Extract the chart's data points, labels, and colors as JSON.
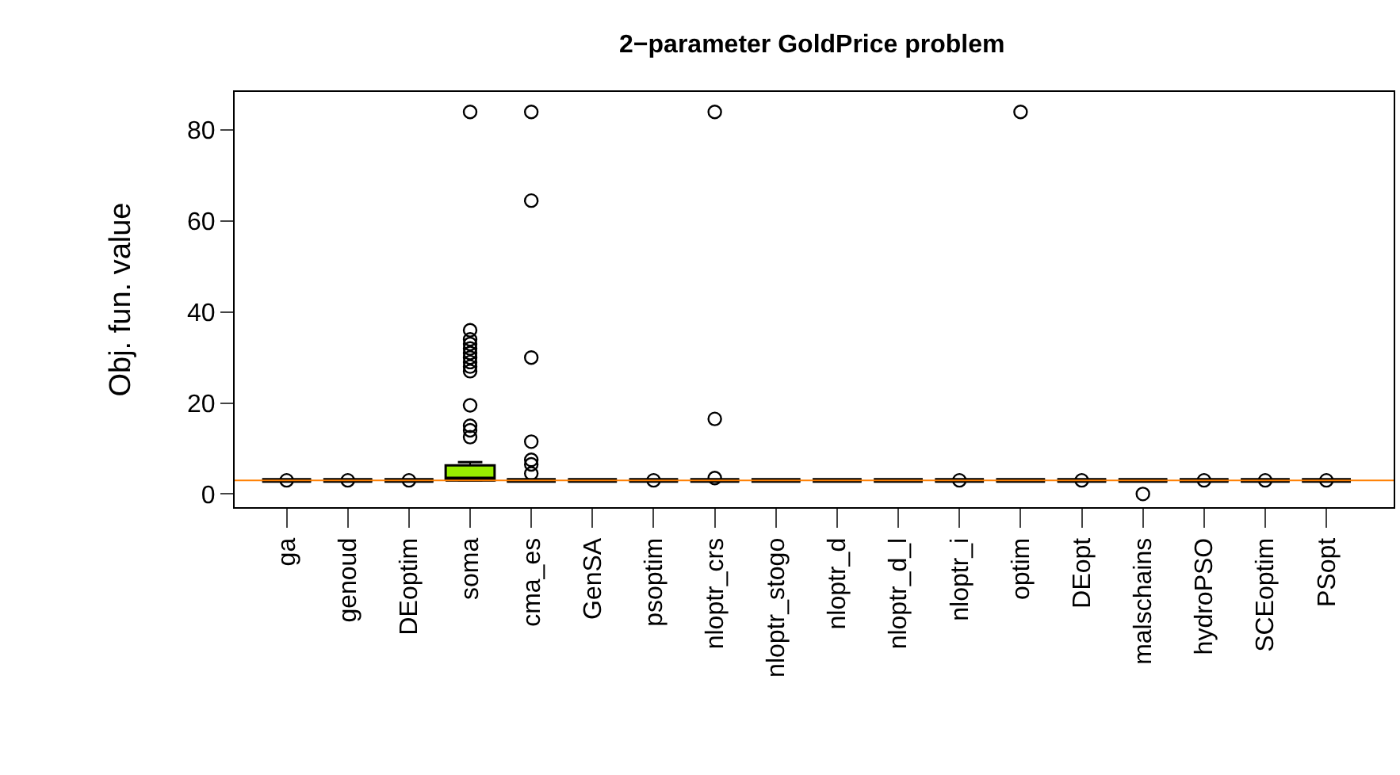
{
  "chart_data": {
    "type": "box",
    "title": "2−parameter GoldPrice problem",
    "ylabel": "Obj. fun. value",
    "categories": [
      "ga",
      "genoud",
      "DEoptim",
      "soma",
      "cma_es",
      "GenSA",
      "psoptim",
      "nloptr_crs",
      "nloptr_stogo",
      "nloptr_d",
      "nloptr_d_l",
      "nloptr_i",
      "optim",
      "DEopt",
      "malschains",
      "hydroPSO",
      "SCEoptim",
      "PSopt"
    ],
    "boxes": [
      {
        "low": 3,
        "q1": 3,
        "median": 3,
        "q3": 3,
        "high": 3,
        "outliers": [
          3
        ]
      },
      {
        "low": 3,
        "q1": 3,
        "median": 3,
        "q3": 3,
        "high": 3,
        "outliers": [
          3
        ]
      },
      {
        "low": 3,
        "q1": 3,
        "median": 3,
        "q3": 3,
        "high": 3,
        "outliers": [
          3
        ]
      },
      {
        "low": 3,
        "q1": 3,
        "median": 3.3,
        "q3": 6.3,
        "high": 7,
        "outliers": [
          84,
          36,
          34,
          33,
          32,
          31,
          30,
          29,
          28,
          27,
          19.5,
          15,
          14,
          12.5
        ]
      },
      {
        "low": 3,
        "q1": 3,
        "median": 3,
        "q3": 3,
        "high": 3,
        "outliers": [
          84,
          64.5,
          30,
          11.5,
          7.5,
          6.5,
          4.5
        ]
      },
      {
        "low": 3,
        "q1": 3,
        "median": 3,
        "q3": 3,
        "high": 3
      },
      {
        "low": 3,
        "q1": 3,
        "median": 3,
        "q3": 3,
        "high": 3,
        "outliers": [
          3
        ]
      },
      {
        "low": 3,
        "q1": 3,
        "median": 3,
        "q3": 3,
        "high": 3,
        "outliers": [
          84,
          16.5,
          3.5
        ]
      },
      {
        "low": 3,
        "q1": 3,
        "median": 3,
        "q3": 3,
        "high": 3
      },
      {
        "low": 3,
        "q1": 3,
        "median": 3,
        "q3": 3,
        "high": 3
      },
      {
        "low": 3,
        "q1": 3,
        "median": 3,
        "q3": 3,
        "high": 3
      },
      {
        "low": 3,
        "q1": 3,
        "median": 3,
        "q3": 3,
        "high": 3,
        "outliers": [
          3
        ]
      },
      {
        "low": 3,
        "q1": 3,
        "median": 3,
        "q3": 3,
        "high": 3,
        "outliers": [
          84
        ]
      },
      {
        "low": 3,
        "q1": 3,
        "median": 3,
        "q3": 3,
        "high": 3,
        "outliers": [
          3
        ]
      },
      {
        "low": 3,
        "q1": 3,
        "median": 3,
        "q3": 3,
        "high": 3,
        "outliers": [
          0
        ]
      },
      {
        "low": 3,
        "q1": 3,
        "median": 3,
        "q3": 3,
        "high": 3,
        "outliers": [
          3
        ]
      },
      {
        "low": 3,
        "q1": 3,
        "median": 3,
        "q3": 3,
        "high": 3,
        "outliers": [
          3
        ]
      },
      {
        "low": 3,
        "q1": 3,
        "median": 3,
        "q3": 3,
        "high": 3,
        "outliers": [
          3
        ]
      }
    ],
    "colors": [
      "#000000",
      "#000000",
      "#000000",
      "#99ee00",
      "#000000",
      "#000000",
      "#000000",
      "#000000",
      "#000000",
      "#000000",
      "#000000",
      "#000000",
      "#000000",
      "#000000",
      "#000000",
      "#000000",
      "#000000",
      "#000000"
    ],
    "ylim": [
      -2.9,
      88.4
    ],
    "yticks": [
      0,
      20,
      40,
      60,
      80
    ],
    "ref_lines": [
      {
        "axis": "y",
        "value": 3,
        "color": "#ff7f00"
      }
    ],
    "marker": "circle"
  }
}
